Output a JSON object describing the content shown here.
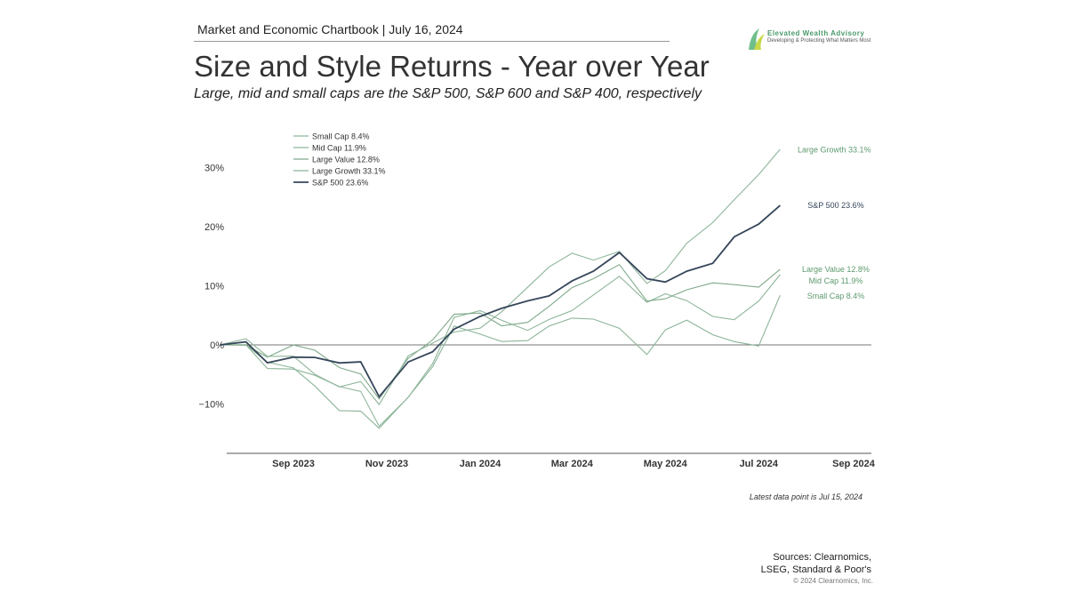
{
  "header": {
    "source_line": "Market and Economic Chartbook | July 16, 2024",
    "title": "Size and Style Returns - Year over Year",
    "subtitle": "Large, mid and small caps are the S&P 500, S&P 600 and S&P 400, respectively"
  },
  "logo": {
    "name": "Elevated Wealth Advisory",
    "tagline": "Developing & Protecting What Matters Most"
  },
  "footer": {
    "note": "Latest data point is Jul 15, 2024",
    "sources": "Sources: Clearnomics,",
    "sources2": "LSEG, Standard & Poor's",
    "copyright": "© 2024 Clearnomics, Inc."
  },
  "chart_data": {
    "type": "line",
    "ylabel": "",
    "xlabel": "",
    "ylim": [
      -18,
      36
    ],
    "yticks": [
      {
        "v": 30,
        "label": "30%"
      },
      {
        "v": 20,
        "label": "20%"
      },
      {
        "v": 10,
        "label": "10%"
      },
      {
        "v": 0,
        "label": "0%"
      },
      {
        "v": -10,
        "label": "−10%"
      }
    ],
    "xticks": [
      "Sep 2023",
      "Nov 2023",
      "Jan 2024",
      "Mar 2024",
      "May 2024",
      "Jul 2024",
      "Sep 2024"
    ],
    "x": [
      "2023-07-15",
      "2023-08-01",
      "2023-08-15",
      "2023-09-01",
      "2023-09-15",
      "2023-10-01",
      "2023-10-15",
      "2023-10-27",
      "2023-11-15",
      "2023-12-01",
      "2023-12-15",
      "2024-01-01",
      "2024-01-15",
      "2024-02-01",
      "2024-02-15",
      "2024-03-01",
      "2024-03-15",
      "2024-04-01",
      "2024-04-19",
      "2024-05-01",
      "2024-05-15",
      "2024-06-01",
      "2024-06-15",
      "2024-07-01",
      "2024-07-15"
    ],
    "series": [
      {
        "name": "Small Cap 8.4%",
        "color": "#8db59a",
        "values": [
          0,
          -1,
          -4,
          -4,
          -6,
          -10,
          -11,
          -15,
          -10,
          -4,
          4,
          3,
          1,
          0,
          2,
          4,
          5,
          4,
          -1,
          2,
          3,
          1,
          1,
          1,
          8.4
        ]
      },
      {
        "name": "Mid Cap 11.9%",
        "color": "#8db59a",
        "values": [
          0,
          0,
          -3,
          -3,
          -5,
          -8,
          -9,
          -14,
          -8,
          -2,
          5,
          5,
          3,
          2,
          5,
          7,
          9,
          11,
          6,
          8,
          8,
          6,
          5,
          7,
          11.9
        ]
      },
      {
        "name": "Large Value 12.8%",
        "color": "#7fa98a",
        "values": [
          0,
          1,
          -2,
          -1,
          -2,
          -4,
          -4,
          -8,
          -2,
          0,
          4,
          5,
          4,
          5,
          7,
          9,
          10,
          13,
          8,
          9,
          10,
          10,
          9,
          9,
          12.8
        ]
      },
      {
        "name": "Large Growth 33.1%",
        "color": "#8db59a",
        "values": [
          0,
          0,
          -3,
          -2,
          -4,
          -6,
          -6,
          -11,
          -3,
          0,
          3,
          4,
          6,
          9,
          12,
          15,
          15,
          17,
          11,
          12,
          16,
          20,
          25,
          30,
          33.1
        ]
      },
      {
        "name": "S&P 500 23.6%",
        "color": "#36465a",
        "values": [
          0,
          0.5,
          -2,
          -1,
          -2,
          -4,
          -4,
          -9,
          -2,
          0,
          3,
          4,
          5,
          7,
          9,
          12,
          13,
          15,
          10,
          10,
          13,
          15,
          19,
          20,
          23.6
        ]
      }
    ],
    "end_labels": [
      {
        "text": "Large Growth 33.1%",
        "v": 33
      },
      {
        "text": "S&P 500 23.6%",
        "v": 23.6
      },
      {
        "text": "Large Value 12.8%",
        "v": 12.8
      },
      {
        "text": "Mid Cap 11.9%",
        "v": 10.8
      },
      {
        "text": "Small Cap 8.4%",
        "v": 8.3
      }
    ],
    "legend_position": "top-left",
    "note": "Latest data point is Jul 15, 2024"
  }
}
